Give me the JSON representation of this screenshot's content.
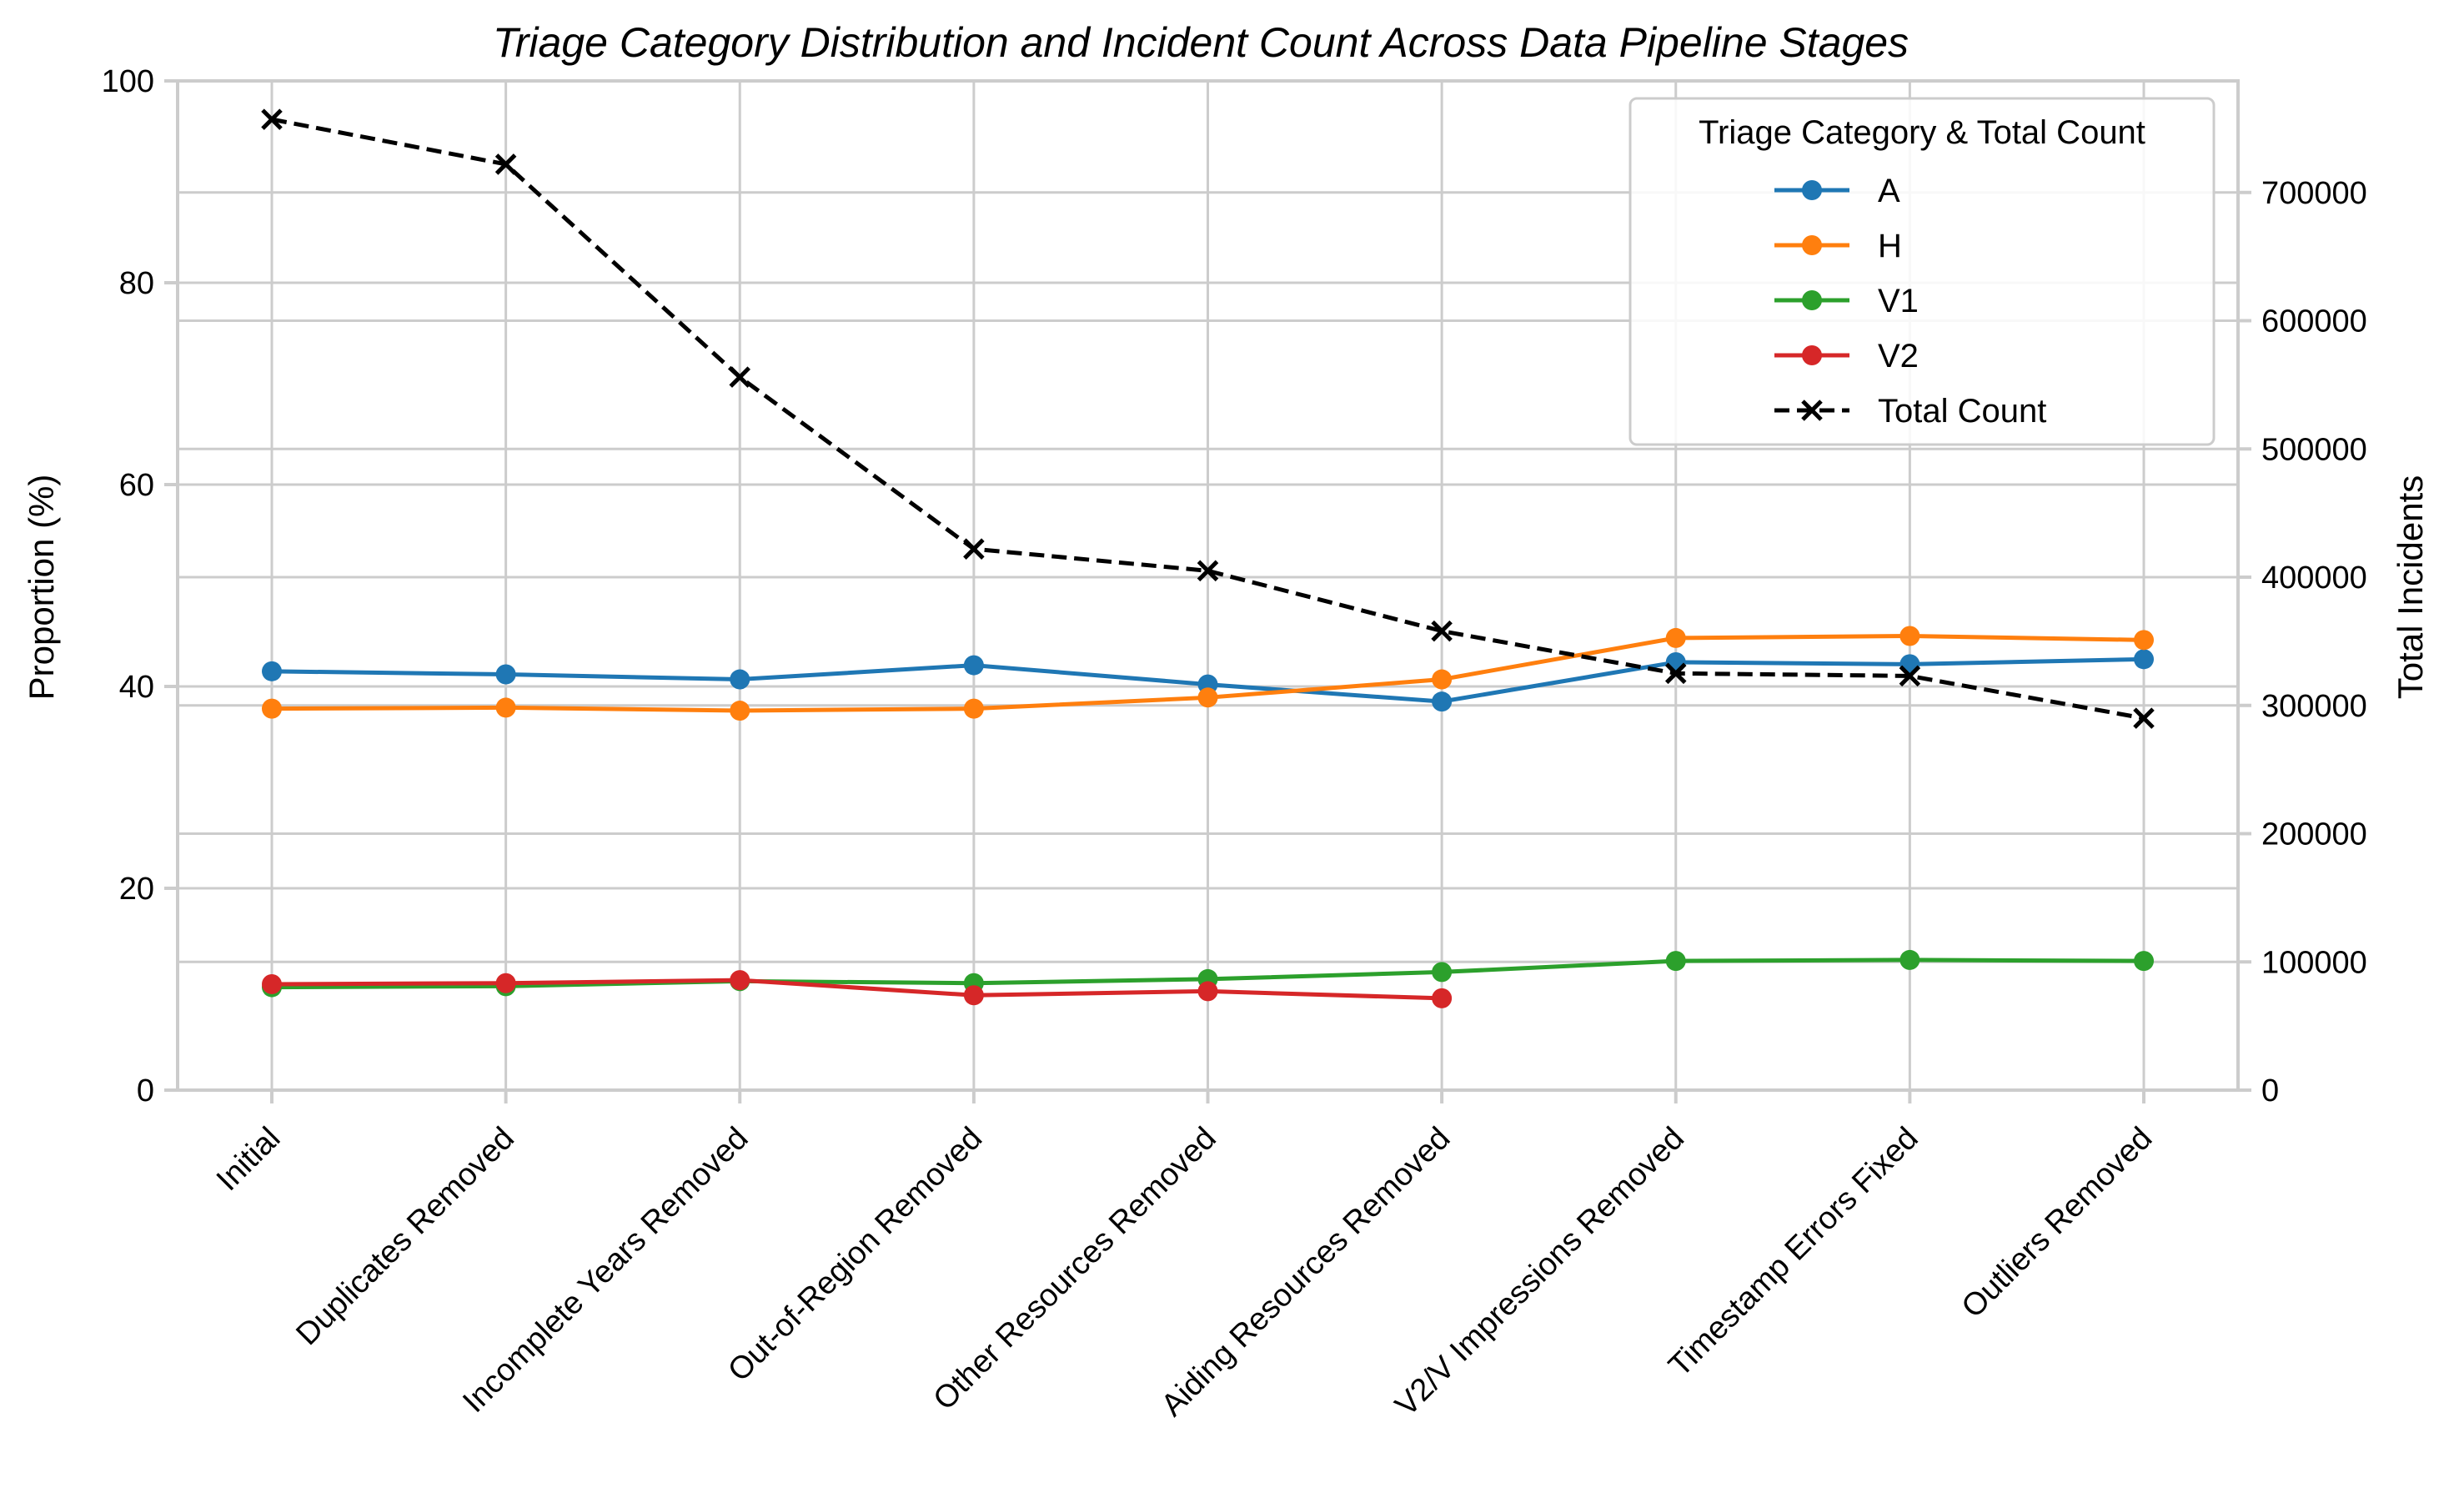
{
  "chart_data": {
    "type": "line",
    "title": "Triage Category Distribution and Incident Count Across Data Pipeline Stages",
    "xlabel": "",
    "ylabel": "Proportion (%)",
    "y2label": "Total Incidents",
    "categories": [
      "Initial",
      "Duplicates Removed",
      "Incomplete Years Removed",
      "Out-of-Region Removed",
      "Other Resources Removed",
      "Aiding Resources Removed",
      "V2/V Impressions Removed",
      "Timestamp Errors Fixed",
      "Outliers Removed"
    ],
    "ylim": [
      0,
      100
    ],
    "y2lim": [
      0,
      787000
    ],
    "yticks": [
      "0",
      "20",
      "40",
      "60",
      "80",
      "100"
    ],
    "y2ticks": [
      "0",
      "100000",
      "200000",
      "300000",
      "400000",
      "500000",
      "600000",
      "700000"
    ],
    "grid": true,
    "legend_title": "Triage Category & Total Count",
    "legend_position": "top-right",
    "series": [
      {
        "name": "A",
        "axis": "left",
        "color": "#1f77b4",
        "marker": "circle",
        "dashed": false,
        "values": [
          41.5,
          41.2,
          40.7,
          42.1,
          40.2,
          38.5,
          42.4,
          42.2,
          42.7
        ]
      },
      {
        "name": "H",
        "axis": "left",
        "color": "#ff7f0e",
        "marker": "circle",
        "dashed": false,
        "values": [
          37.8,
          37.9,
          37.6,
          37.8,
          38.9,
          40.7,
          44.8,
          45.0,
          44.6
        ]
      },
      {
        "name": "V1",
        "axis": "left",
        "color": "#2ca02c",
        "marker": "circle",
        "dashed": false,
        "values": [
          10.2,
          10.3,
          10.8,
          10.6,
          11.0,
          11.7,
          12.8,
          12.9,
          12.8
        ]
      },
      {
        "name": "V2",
        "axis": "left",
        "color": "#d62728",
        "marker": "circle",
        "dashed": false,
        "values": [
          10.5,
          10.6,
          10.9,
          9.4,
          9.8,
          9.1,
          null,
          null,
          null
        ]
      },
      {
        "name": "Total Count",
        "axis": "right",
        "color": "#000000",
        "marker": "x",
        "dashed": true,
        "values": [
          757000,
          722000,
          556000,
          422000,
          405000,
          358000,
          325000,
          323000,
          290000
        ]
      }
    ]
  }
}
